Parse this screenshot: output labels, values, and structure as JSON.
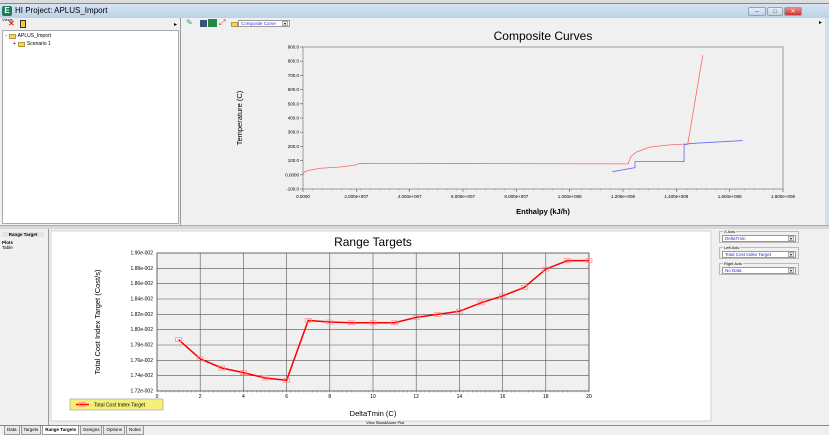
{
  "window": {
    "title": "HI Project:  APLUS_Import",
    "app_icon": "E",
    "controls": [
      "minimize",
      "maximize",
      "close"
    ]
  },
  "left_pane": {
    "toolbar_label": "Views",
    "tree": [
      {
        "label": "APLUS_Import",
        "expander": "-"
      },
      {
        "label": "Scenario 1",
        "expander": "+"
      }
    ]
  },
  "right_toolbar": {
    "view_select": "Composite Curve"
  },
  "composite_chart": {
    "chart_data": {
      "type": "line",
      "title": "Composite Curves",
      "xlabel": "Enthalpy (kJ/h)",
      "ylabel": "Temperature (C)",
      "xlim": [
        0,
        180000000
      ],
      "ylim": [
        -100,
        900
      ],
      "xticks": [
        "0.0000",
        "2.000e+007",
        "4.000e+007",
        "6.000e+007",
        "8.000e+007",
        "1.000e+008",
        "1.200e+008",
        "1.400e+008",
        "1.600e+008",
        "1.800e+008"
      ],
      "yticks": [
        "900.0",
        "800.0",
        "700.0",
        "600.0",
        "500.0",
        "400.0",
        "300.0",
        "200.0",
        "100.0",
        "0.0000",
        "-100.0"
      ],
      "series": [
        {
          "color": "#ff6666",
          "points": [
            [
              0,
              0
            ],
            [
              500000,
              20
            ],
            [
              2000000,
              30
            ],
            [
              6000000,
              45
            ],
            [
              14000000,
              55
            ],
            [
              20000000,
              70
            ],
            [
              21000000,
              80
            ],
            [
              60000000,
              79
            ],
            [
              121900000,
              77
            ],
            [
              123000000,
              130
            ],
            [
              125000000,
              160
            ],
            [
              130000000,
              195
            ],
            [
              137000000,
              210
            ],
            [
              144300000,
              218
            ],
            [
              149900000,
              841
            ]
          ]
        },
        {
          "color": "#6666ff",
          "points": [
            [
              116000000,
              22
            ],
            [
              124500000,
              50
            ],
            [
              124500000,
              93
            ],
            [
              142900000,
              93
            ],
            [
              142900000,
              210
            ],
            [
              145000000,
              220
            ],
            [
              164900000,
              241
            ]
          ]
        }
      ]
    }
  },
  "nav_pane": {
    "header": "Range Target",
    "items": [
      "Plots",
      "Table"
    ]
  },
  "range_chart": {
    "chart_data": {
      "type": "line",
      "title": "Range Targets",
      "xlabel": "DeltaTmin (C)",
      "ylabel": "Total Cost Index Target (Cost/s)",
      "xlim": [
        0,
        20
      ],
      "ylim": [
        0.0172,
        0.019
      ],
      "grid": true,
      "legend": "bottom-left",
      "xticks": [
        "0",
        "2",
        "4",
        "6",
        "8",
        "10",
        "12",
        "14",
        "16",
        "18",
        "20"
      ],
      "yticks": [
        "1.90e-002",
        "1.88e-002",
        "1.86e-002",
        "1.84e-002",
        "1.82e-002",
        "1.80e-002",
        "1.78e-002",
        "1.76e-002",
        "1.74e-002",
        "1.72e-002"
      ],
      "series": [
        {
          "name": "Total Cost Index Target",
          "color": "#ff0000",
          "x": [
            1,
            2,
            3,
            4,
            5,
            6,
            7,
            8,
            9,
            10,
            11,
            12,
            13,
            14,
            15,
            16,
            17,
            18,
            19,
            20
          ],
          "y": [
            0.01787,
            0.01762,
            0.0175,
            0.01744,
            0.01737,
            0.01734,
            0.01812,
            0.0181,
            0.01809,
            0.01809,
            0.01809,
            0.01816,
            0.0182,
            0.01824,
            0.01835,
            0.01844,
            0.01855,
            0.01879,
            0.0189,
            0.0189
          ]
        }
      ]
    },
    "footer_link": "View StandAlone Plot"
  },
  "axis_controls": [
    {
      "label": "X Axis",
      "value": "DeltaTmin"
    },
    {
      "label": "Left Axis",
      "value": "Total Cost Index Target"
    },
    {
      "label": "Right Axis",
      "value": "No Data"
    }
  ],
  "tabs": [
    {
      "label": "Data"
    },
    {
      "label": "Targets"
    },
    {
      "label": "Range Targets",
      "active": true
    },
    {
      "label": "Designs"
    },
    {
      "label": "Options"
    },
    {
      "label": "Notes"
    }
  ]
}
